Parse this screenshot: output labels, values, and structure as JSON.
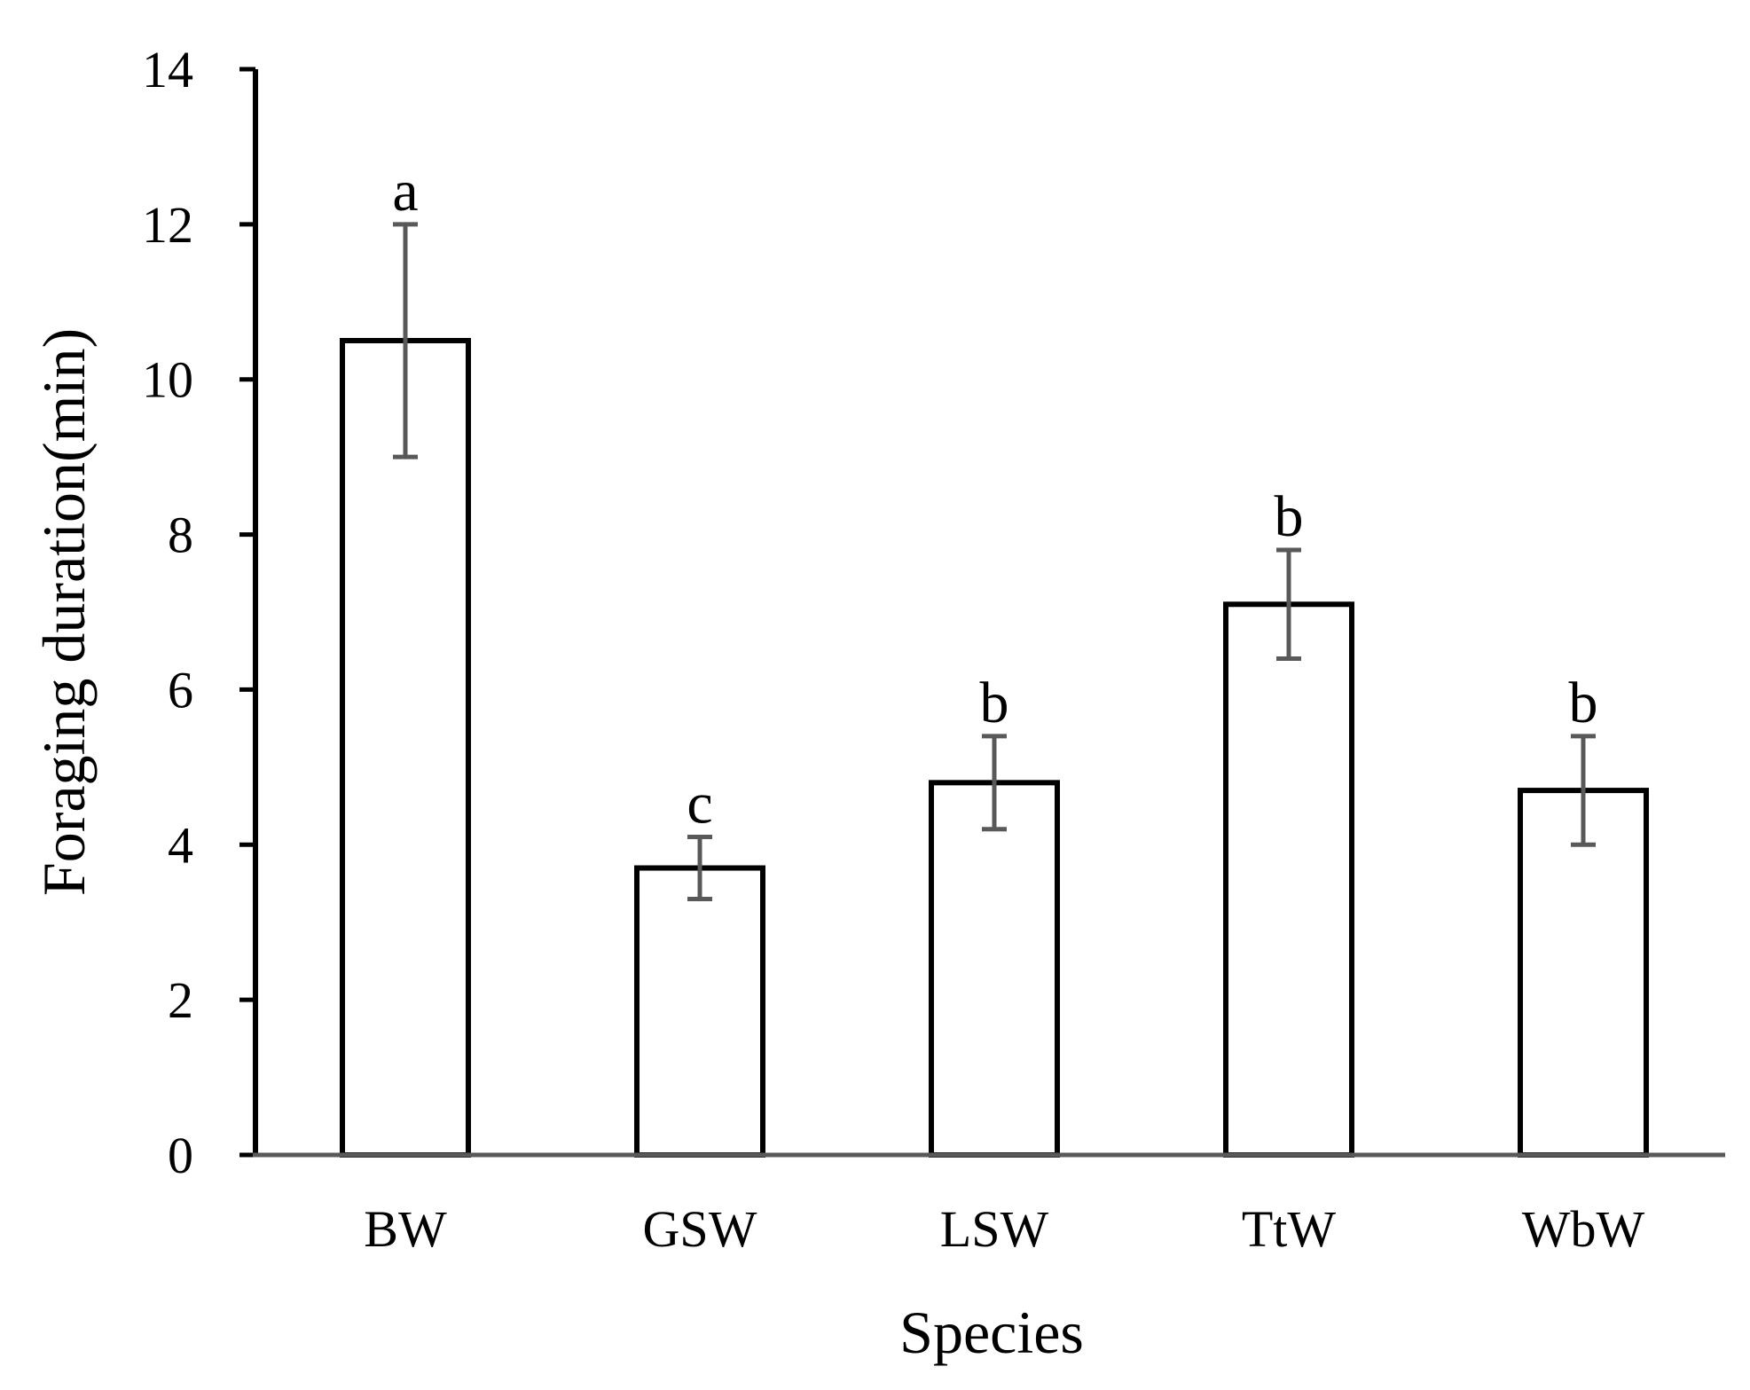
{
  "chart_data": {
    "type": "bar",
    "title": "",
    "xlabel": "Species",
    "ylabel": "Foraging duration(min)",
    "ylim": [
      0,
      14
    ],
    "yticks": [
      0,
      2,
      4,
      6,
      8,
      10,
      12,
      14
    ],
    "categories": [
      "BW",
      "GSW",
      "LSW",
      "TtW",
      "WbW"
    ],
    "values": [
      10.5,
      3.7,
      4.8,
      7.1,
      4.7
    ],
    "error_lower": [
      9.0,
      3.3,
      4.2,
      6.4,
      4.0
    ],
    "error_upper": [
      12.0,
      4.1,
      5.4,
      7.8,
      5.4
    ],
    "significance_letters": [
      "a",
      "c",
      "b",
      "b",
      "b"
    ],
    "grid": false,
    "legend": "none",
    "colors": {
      "bar_fill": "#ffffff",
      "bar_stroke": "#000000",
      "error_bar": "#595959",
      "axis": "#000000",
      "x_axis_line": "#595959"
    }
  }
}
